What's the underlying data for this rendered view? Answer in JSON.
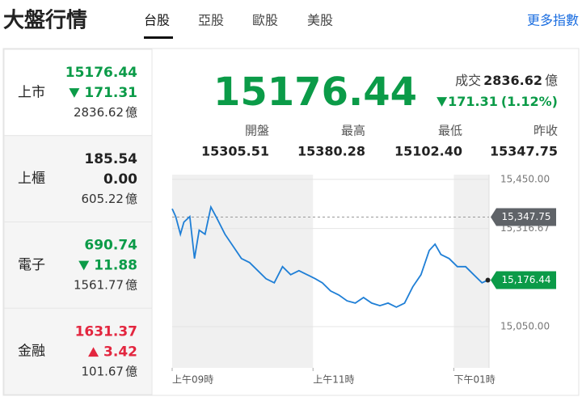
{
  "header": {
    "title": "大盤行情",
    "tabs": [
      "台股",
      "亞股",
      "歐股",
      "美股"
    ],
    "selected_tab": 0,
    "link": "更多指數"
  },
  "volume_unit": "億",
  "markets": [
    {
      "name": "上市",
      "price": "15176.44",
      "change": "171.31",
      "direction": "down",
      "volume": "2836.62"
    },
    {
      "name": "上櫃",
      "price": "185.54",
      "change": "0.00",
      "direction": "flat",
      "volume": "605.22"
    },
    {
      "name": "電子",
      "price": "690.74",
      "change": "11.88",
      "direction": "down",
      "volume": "1561.77"
    },
    {
      "name": "金融",
      "price": "1631.37",
      "change": "3.42",
      "direction": "up",
      "volume": "101.67"
    }
  ],
  "summary": {
    "price": "15176.44",
    "volume_label": "成交",
    "volume": "2836.62",
    "change": "171.31",
    "change_pct": "(1.12%)",
    "direction": "down",
    "stats": [
      {
        "label": "開盤",
        "value": "15305.51"
      },
      {
        "label": "最高",
        "value": "15380.28"
      },
      {
        "label": "最低",
        "value": "15102.40"
      },
      {
        "label": "昨收",
        "value": "15347.75"
      }
    ]
  },
  "chart": {
    "type": "line",
    "color": "#1f7fd6",
    "x": [
      0,
      3,
      7,
      10,
      15,
      19,
      23,
      28,
      33,
      38,
      45,
      52,
      59,
      66,
      73,
      80,
      87,
      94,
      101,
      108,
      115,
      122,
      128,
      135,
      142,
      149,
      156,
      163,
      170,
      177,
      184,
      191,
      198,
      205,
      212,
      219,
      224,
      229,
      236,
      243,
      250,
      257,
      264,
      269
    ],
    "values": [
      15370,
      15349,
      15301,
      15334,
      15349,
      15235,
      15312,
      15301,
      15375,
      15345,
      15301,
      15268,
      15235,
      15224,
      15202,
      15180,
      15169,
      15213,
      15191,
      15202,
      15191,
      15180,
      15169,
      15147,
      15136,
      15120,
      15114,
      15129,
      15114,
      15107,
      15114,
      15103,
      15114,
      15158,
      15191,
      15257,
      15274,
      15246,
      15235,
      15213,
      15213,
      15191,
      15169,
      15176.44
    ],
    "xlim": [
      0,
      270
    ],
    "xticks": [
      {
        "value": 0,
        "label": "上午09時"
      },
      {
        "value": 120,
        "label": "上午11時"
      },
      {
        "value": 240,
        "label": "下午01時"
      }
    ],
    "ylim": [
      14938,
      15463
    ],
    "yticks": [
      {
        "value": 15450,
        "label": "15,450.00"
      },
      {
        "value": 15316.67,
        "label": "15,316.67"
      },
      {
        "value": 15050,
        "label": "15,050.00"
      }
    ],
    "grid": true,
    "reference": {
      "value": 15347.75,
      "label": "15,347.75"
    },
    "last": {
      "value": 15176.44,
      "label": "15,176.44"
    }
  }
}
